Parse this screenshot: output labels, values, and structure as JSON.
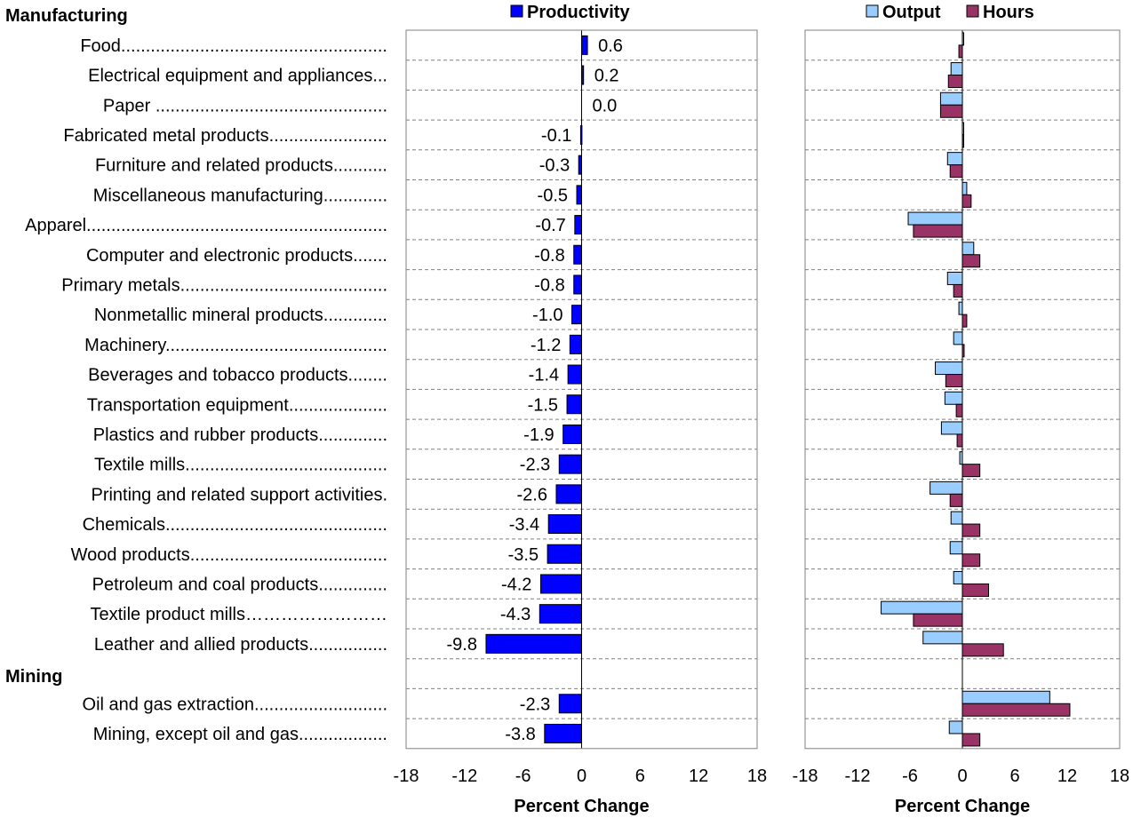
{
  "chart_data": [
    {
      "type": "bar",
      "orientation": "horizontal",
      "legend": [
        "Productivity"
      ],
      "xlabel": "Percent Change",
      "xlim": [
        -18,
        18
      ],
      "xticks": [
        "-18",
        "-12",
        "-6",
        "0",
        "6",
        "12",
        "18"
      ],
      "sections": [
        {
          "name": "Manufacturing",
          "categories": [
            "Food",
            "Electrical equipment and appliances",
            "Paper",
            "Fabricated metal products",
            "Furniture and related products",
            "Miscellaneous manufacturing",
            "Apparel",
            "Computer and electronic products",
            "Primary metals",
            "Nonmetallic mineral products",
            "Machinery",
            "Beverages and tobacco products",
            "Transportation equipment",
            "Plastics and rubber products",
            "Textile mills",
            "Printing and related support activities",
            "Chemicals",
            "Wood products",
            "Petroleum and coal products",
            "Textile product mills",
            "Leather and allied products"
          ],
          "values": [
            0.6,
            0.2,
            0.0,
            -0.1,
            -0.3,
            -0.5,
            -0.7,
            -0.8,
            -0.8,
            -1.0,
            -1.2,
            -1.4,
            -1.5,
            -1.9,
            -2.3,
            -2.6,
            -3.4,
            -3.5,
            -4.2,
            -4.3,
            -9.8
          ],
          "value_labels": [
            "0.6",
            "0.2",
            "0.0",
            "-0.1",
            "-0.3",
            "-0.5",
            "-0.7",
            "-0.8",
            "-0.8",
            "-1.0",
            "-1.2",
            "-1.4",
            "-1.5",
            "-1.9",
            "-2.3",
            "-2.6",
            "-3.4",
            "-3.5",
            "-4.2",
            "-4.3",
            "-9.8"
          ]
        },
        {
          "name": "Mining",
          "categories": [
            "Oil and gas extraction",
            "Mining, except oil and gas"
          ],
          "values": [
            -2.3,
            -3.8
          ],
          "value_labels": [
            "-2.3",
            "-3.8"
          ]
        }
      ],
      "colors": {
        "productivity": "#0000ff"
      }
    },
    {
      "type": "bar",
      "orientation": "horizontal",
      "legend": [
        "Output",
        "Hours"
      ],
      "xlabel": "Percent Change",
      "xlim": [
        -18,
        18
      ],
      "xticks": [
        "-18",
        "-12",
        "-6",
        "0",
        "6",
        "12",
        "18"
      ],
      "series": [
        {
          "name": "Output",
          "color": "#99ccff",
          "values": [
            0.1,
            -1.3,
            -2.5,
            0.0,
            -1.7,
            0.5,
            -6.2,
            1.3,
            -1.7,
            -0.4,
            -1.0,
            -3.1,
            -2.0,
            -2.4,
            -0.3,
            -3.7,
            -1.3,
            -1.4,
            -1.0,
            -9.3,
            -4.5,
            10.0,
            -1.5
          ]
        },
        {
          "name": "Hours",
          "color": "#993366",
          "values": [
            -0.4,
            -1.6,
            -2.5,
            0.1,
            -1.4,
            1.0,
            -5.6,
            2.0,
            -1.0,
            0.5,
            0.2,
            -1.9,
            -0.7,
            -0.6,
            2.0,
            -1.4,
            2.0,
            2.0,
            3.0,
            -5.6,
            4.7,
            12.3,
            2.0
          ]
        }
      ]
    }
  ],
  "row_labels": [
    "Food......................................................",
    "Electrical equipment and appliances...",
    "Paper ...............................................",
    "Fabricated metal products........................",
    "Furniture and related products...........",
    "Miscellaneous manufacturing.............",
    "Apparel.............................................................",
    "Computer and electronic products.......",
    "Primary metals..........................................",
    "Nonmetallic mineral products.............",
    "Machinery.............................................",
    "Beverages and tobacco products........",
    "Transportation equipment....................",
    "Plastics and rubber products..............",
    "Textile mills.........................................",
    "Printing and related support activities.",
    "Chemicals.............................................",
    "Wood products........................................",
    "Petroleum and coal products..............",
    "Textile product mills……………………",
    "Leather and allied products................",
    "Oil and gas extraction...........................",
    "Mining, except oil and gas.................."
  ],
  "section_labels": {
    "manufacturing": "Manufacturing",
    "mining": "Mining"
  }
}
